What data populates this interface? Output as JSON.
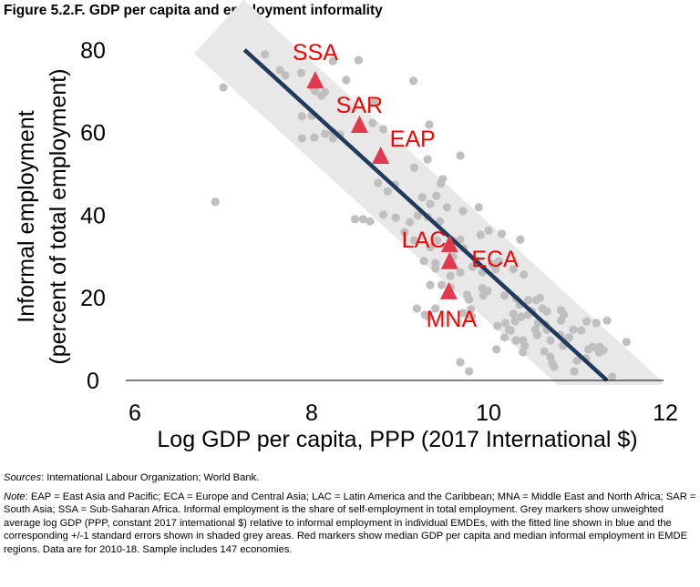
{
  "title": "Figure 5.2.F. GDP per capita and employment informality",
  "chart_data": {
    "type": "scatter",
    "title": "Figure 5.2.F. GDP per capita and employment informality",
    "xlabel": "Log GDP per capita, PPP (2017 International $)",
    "ylabel_lines": [
      "Informal employment",
      "(percent of total employment)"
    ],
    "xlim": [
      6,
      12
    ],
    "ylim": [
      0,
      80
    ],
    "x_ticks": [
      6,
      8,
      10,
      12
    ],
    "y_ticks": [
      0,
      20,
      40,
      60,
      80
    ],
    "grid": false,
    "colors": {
      "scatter": "#bfbfbf",
      "fit_line": "#1f3a5a",
      "band": "#e8e8e8",
      "region_marker": "#e2394e",
      "region_label": "#ff0000",
      "axis": "#000000"
    },
    "fitted_line": {
      "x": [
        7.24,
        11.34
      ],
      "y": [
        80,
        0
      ],
      "name": "Fitted line"
    },
    "band": {
      "name": "+/-1 standard errors",
      "x_range": [
        6.95,
        11.7
      ],
      "offset": 12
    },
    "regions": [
      {
        "label": "SSA",
        "x": 8.04,
        "y": 72.7
      },
      {
        "label": "SAR",
        "x": 8.54,
        "y": 61.9
      },
      {
        "label": "EAP",
        "x": 8.78,
        "y": 54.4
      },
      {
        "label": "LAC",
        "x": 9.56,
        "y": 33.0
      },
      {
        "label": "ECA",
        "x": 9.56,
        "y": 28.9
      },
      {
        "label": "MNA",
        "x": 9.55,
        "y": 21.6
      }
    ],
    "series": [
      {
        "name": "Individual EMDEs",
        "points": [
          [
            7.0,
            70.9
          ],
          [
            6.91,
            43.2
          ],
          [
            7.47,
            78.9
          ],
          [
            7.64,
            75.1
          ],
          [
            7.7,
            73.8
          ],
          [
            7.88,
            74.4
          ],
          [
            8.01,
            70.9
          ],
          [
            8.04,
            70.0
          ],
          [
            8.11,
            68.9
          ],
          [
            8.15,
            69.8
          ],
          [
            8.24,
            77.3
          ],
          [
            8.53,
            77.5
          ],
          [
            8.39,
            72.7
          ],
          [
            8.0,
            64.1
          ],
          [
            7.89,
            63.9
          ],
          [
            7.89,
            58.6
          ],
          [
            8.03,
            58.8
          ],
          [
            8.24,
            58.6
          ],
          [
            8.32,
            59.5
          ],
          [
            8.15,
            59.7
          ],
          [
            8.24,
            60.1
          ],
          [
            8.55,
            61.9
          ],
          [
            8.69,
            62.3
          ],
          [
            8.71,
            67.2
          ],
          [
            8.81,
            60.8
          ],
          [
            9.15,
            72.5
          ],
          [
            9.33,
            61.9
          ],
          [
            8.75,
            47.8
          ],
          [
            8.86,
            45.8
          ],
          [
            8.94,
            47.4
          ],
          [
            9.16,
            51.5
          ],
          [
            9.31,
            53.5
          ],
          [
            9.46,
            47.6
          ],
          [
            9.48,
            48.7
          ],
          [
            9.68,
            54.4
          ],
          [
            9.71,
            41.0
          ],
          [
            8.58,
            39.0
          ],
          [
            8.49,
            39.0
          ],
          [
            8.66,
            38.5
          ],
          [
            8.81,
            40.1
          ],
          [
            8.95,
            39.4
          ],
          [
            9.05,
            35.9
          ],
          [
            9.16,
            33.9
          ],
          [
            9.27,
            28.9
          ],
          [
            9.34,
            32.2
          ],
          [
            9.42,
            33.9
          ],
          [
            9.2,
            39.9
          ],
          [
            9.11,
            38.3
          ],
          [
            9.25,
            44.3
          ],
          [
            9.31,
            39.6
          ],
          [
            9.34,
            42.7
          ],
          [
            9.41,
            44.7
          ],
          [
            9.45,
            38.5
          ],
          [
            9.53,
            41.9
          ],
          [
            9.68,
            34.1
          ],
          [
            9.72,
            32.0
          ],
          [
            9.89,
            41.9
          ],
          [
            9.91,
            35.2
          ],
          [
            10.04,
            28.2
          ],
          [
            9.86,
            29.1
          ],
          [
            10.0,
            36.3
          ],
          [
            9.93,
            26.2
          ],
          [
            10.12,
            28.9
          ],
          [
            10.15,
            35.5
          ],
          [
            10.28,
            26.9
          ],
          [
            10.4,
            25.6
          ],
          [
            10.36,
            34.1
          ],
          [
            9.59,
            33.9
          ],
          [
            9.6,
            29.9
          ],
          [
            9.68,
            26.2
          ],
          [
            9.57,
            25.3
          ],
          [
            9.78,
            19.6
          ],
          [
            9.82,
            27.5
          ],
          [
            9.76,
            20.7
          ],
          [
            9.71,
            16.3
          ],
          [
            9.8,
            17.2
          ],
          [
            9.81,
            15.4
          ],
          [
            9.93,
            22.3
          ],
          [
            10.08,
            26.9
          ],
          [
            9.4,
            27.1
          ],
          [
            9.57,
            22.5
          ],
          [
            9.4,
            28.4
          ],
          [
            9.47,
            23.1
          ],
          [
            9.19,
            17.4
          ],
          [
            9.28,
            15.9
          ],
          [
            9.32,
            15.4
          ],
          [
            9.4,
            17.4
          ],
          [
            9.34,
            23.1
          ],
          [
            9.78,
            2.2
          ],
          [
            9.68,
            4.4
          ],
          [
            10.09,
            7.5
          ],
          [
            10.18,
            10.4
          ],
          [
            10.1,
            13.2
          ],
          [
            10.19,
            13.9
          ],
          [
            10.23,
            12.3
          ],
          [
            10.31,
            9.7
          ],
          [
            10.41,
            8.4
          ],
          [
            10.49,
            16.7
          ],
          [
            10.64,
            13.6
          ],
          [
            10.56,
            13.9
          ],
          [
            10.66,
            12.3
          ],
          [
            10.7,
            9.7
          ],
          [
            10.81,
            11.0
          ],
          [
            10.88,
            9.9
          ],
          [
            10.91,
            10.4
          ],
          [
            10.82,
            14.5
          ],
          [
            10.84,
            8.4
          ],
          [
            10.96,
            12.3
          ],
          [
            11.11,
            14.3
          ],
          [
            11.05,
            12.1
          ],
          [
            11.22,
            13.9
          ],
          [
            11.34,
            14.5
          ],
          [
            11.13,
            7.5
          ],
          [
            11.1,
            5.3
          ],
          [
            10.97,
            2.2
          ],
          [
            10.74,
            3.3
          ],
          [
            10.7,
            5.7
          ],
          [
            10.72,
            4.2
          ],
          [
            10.39,
            6.8
          ],
          [
            10.45,
            15.9
          ],
          [
            10.37,
            15.4
          ],
          [
            10.28,
            16.1
          ],
          [
            10.3,
            14.3
          ],
          [
            10.25,
            12.1
          ],
          [
            10.55,
            11.0
          ],
          [
            10.66,
            16.7
          ],
          [
            10.82,
            17.0
          ],
          [
            10.85,
            15.9
          ],
          [
            11.18,
            8.1
          ],
          [
            11.26,
            8.1
          ],
          [
            11.4,
            0.9
          ],
          [
            11.56,
            9.3
          ],
          [
            11.0,
            4.8
          ],
          [
            11.25,
            6.8
          ],
          [
            11.3,
            7.3
          ],
          [
            10.58,
            20.0
          ],
          [
            10.61,
            17.4
          ],
          [
            10.31,
            19.8
          ],
          [
            10.18,
            20.5
          ],
          [
            10.45,
            19.4
          ],
          [
            10.54,
            19.4
          ],
          [
            10.35,
            18.3
          ],
          [
            10.63,
            7.0
          ],
          [
            10.39,
            9.7
          ],
          [
            10.53,
            12.3
          ],
          [
            9.94,
            20.5
          ],
          [
            9.99,
            21.6
          ]
        ]
      }
    ]
  },
  "notes": {
    "sources_lead": "Sources",
    "sources_text": ": International Labour Organization; World Bank.",
    "note_lead": "Note",
    "note_text": ": EAP = East Asia and Pacific; ECA = Europe and Central Asia; LAC = Latin America and the Caribbean; MNA = Middle East and North Africa; SAR = South Asia; SSA = Sub-Saharan Africa. Informal employment is the share of self-employment in total employment.  Grey markers show unweighted average log GDP (PPP, constant 2017 international $) relative to informal employment in individual EMDEs, with the fitted line shown in blue and the corresponding +/-1 standard errors shown in shaded grey areas. Red markers show median GDP per capita and median informal employment in EMDE regions. Data are for 2010-18. Sample includes 147 economies."
  }
}
